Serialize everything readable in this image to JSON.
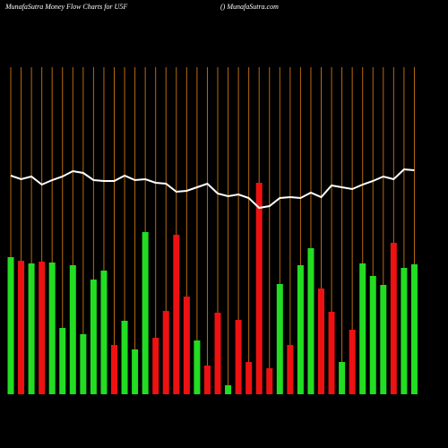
{
  "chart_data": {
    "type": "bar",
    "title": "MunafaSutra  Money Flow  Charts for U5F",
    "subtitle": "() MunafaSutra.com",
    "values": [
      153,
      149,
      146,
      148,
      147,
      74,
      144,
      67,
      128,
      138,
      55,
      82,
      50,
      181,
      63,
      93,
      178,
      109,
      60,
      32,
      91,
      10,
      83,
      36,
      236,
      29,
      123,
      55,
      144,
      163,
      118,
      92,
      36,
      72,
      146,
      132,
      122,
      169,
      141,
      145
    ],
    "colors": [
      "#22dd22",
      "#ee1111",
      "#22dd22",
      "#ee1111",
      "#22dd22",
      "#22dd22",
      "#22dd22",
      "#22dd22",
      "#22dd22",
      "#22dd22",
      "#ee1111",
      "#22dd22",
      "#22dd22",
      "#22dd22",
      "#ee1111",
      "#ee1111",
      "#ee1111",
      "#ee1111",
      "#22dd22",
      "#ee1111",
      "#ee1111",
      "#22dd22",
      "#ee1111",
      "#ee1111",
      "#ee1111",
      "#ee1111",
      "#22dd22",
      "#ee1111",
      "#22dd22",
      "#22dd22",
      "#ee1111",
      "#ee1111",
      "#22dd22",
      "#ee1111",
      "#22dd22",
      "#22dd22",
      "#22dd22",
      "#ee1111",
      "#22dd22",
      "#22dd22"
    ],
    "line": {
      "color": "#ffffff",
      "values": [
        244,
        240,
        243,
        234,
        239,
        243,
        249,
        247,
        239,
        238,
        238,
        244,
        239,
        240,
        236,
        235,
        226,
        227,
        231,
        235,
        224,
        221,
        223,
        219,
        208,
        210,
        219,
        220,
        219,
        225,
        220,
        233,
        231,
        229,
        234,
        238,
        243,
        240,
        251,
        250
      ]
    },
    "ylim": [
      0,
      440
    ]
  }
}
